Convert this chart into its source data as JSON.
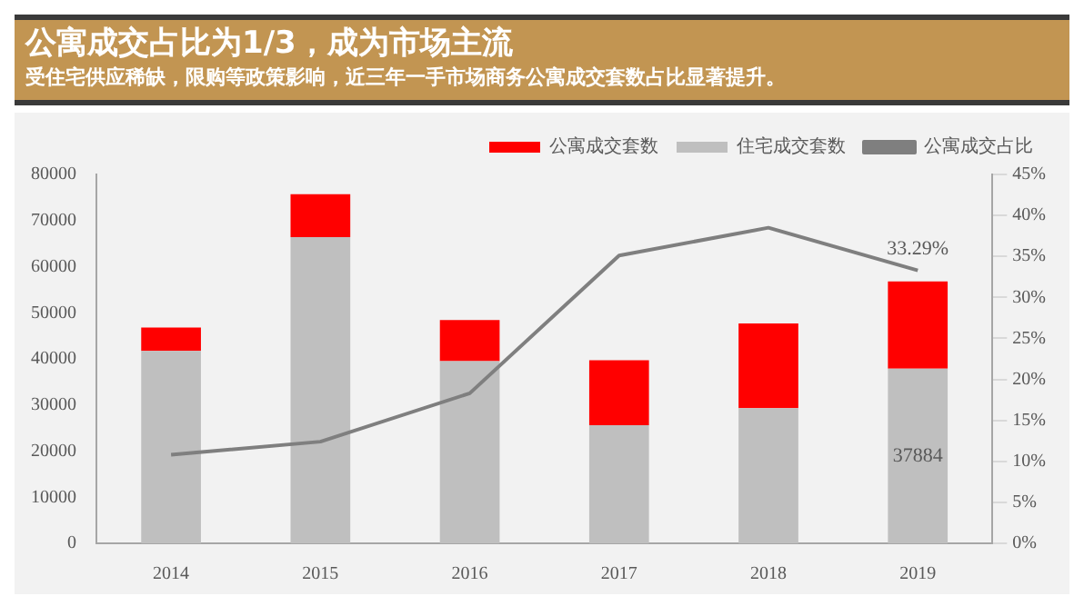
{
  "chart_data": {
    "type": "bar",
    "title": "公寓成交占比为1/3，成为市场主流",
    "subtitle": "受住宅供应稀缺，限购等政策影响，近三年一手市场商务公寓成交套数占比显著提升。",
    "categories": [
      "2014",
      "2015",
      "2016",
      "2017",
      "2018",
      "2019"
    ],
    "stacked": true,
    "series": [
      {
        "name": "住宅成交套数",
        "color": "#bfbfbf",
        "values": [
          41700,
          66400,
          39500,
          25600,
          29300,
          37884
        ],
        "value_labels": [
          null,
          null,
          null,
          null,
          null,
          "37884"
        ]
      },
      {
        "name": "公寓成交套数",
        "color": "#ff0000",
        "values": [
          5100,
          9300,
          8900,
          14100,
          18400,
          18900
        ]
      },
      {
        "name": "公寓成交占比",
        "type": "line",
        "axis": "y2",
        "color": "#7f7f7f",
        "values": [
          10.8,
          12.4,
          18.3,
          35.1,
          38.5,
          33.29
        ],
        "value_labels": [
          null,
          null,
          null,
          null,
          null,
          "33.29%"
        ]
      }
    ],
    "ylim": [
      0,
      80000
    ],
    "yticks": [
      0,
      10000,
      20000,
      30000,
      40000,
      50000,
      60000,
      70000,
      80000
    ],
    "y2lim": [
      0,
      45
    ],
    "y2ticks": [
      {
        "value": 0,
        "label": "0%"
      },
      {
        "value": 5,
        "label": "5%"
      },
      {
        "value": 10,
        "label": "10%"
      },
      {
        "value": 15,
        "label": "15%"
      },
      {
        "value": 20,
        "label": "20%"
      },
      {
        "value": 25,
        "label": "25%"
      },
      {
        "value": 30,
        "label": "30%"
      },
      {
        "value": 35,
        "label": "35%"
      },
      {
        "value": 40,
        "label": "40%"
      },
      {
        "value": 45,
        "label": "45%"
      }
    ],
    "grid": false,
    "legend": "top",
    "marker": "none"
  }
}
